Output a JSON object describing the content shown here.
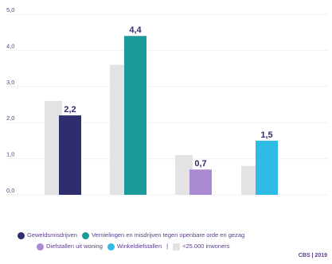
{
  "chart_data": {
    "type": "bar",
    "ylim": [
      0,
      5
    ],
    "yticks": [
      "0,0",
      "1,0",
      "2,0",
      "3,0",
      "4,0",
      "5,0"
    ],
    "grid": true,
    "groups": [
      {
        "reference": 2.6,
        "value": 2.2,
        "label": "2,2",
        "color": "#2e2d6e"
      },
      {
        "reference": 3.6,
        "value": 4.4,
        "label": "4,4",
        "color": "#1a9a9a"
      },
      {
        "reference": 1.1,
        "value": 0.7,
        "label": "0,7",
        "color": "#a98bd1"
      },
      {
        "reference": 0.8,
        "value": 1.5,
        "label": "1,5",
        "color": "#2ebbe6"
      }
    ],
    "reference_color": "#e3e3e3",
    "label_color": "#3a2a6e"
  },
  "legend": {
    "items": [
      {
        "label": "Geweldsmisdrijven",
        "color": "#2e2d6e"
      },
      {
        "label": "Vernielingen en misdrijven tegen openbare orde en gezag",
        "color": "#1a9a9a"
      },
      {
        "label": "Diefstallen uit woning",
        "color": "#a98bd1"
      },
      {
        "label": "Winkeldiefstallen",
        "color": "#2ebbe6"
      },
      {
        "label": "<25.000 inwoners",
        "color": "#e3e3e3"
      }
    ],
    "separator": "|"
  },
  "source": "CBS | 2019"
}
